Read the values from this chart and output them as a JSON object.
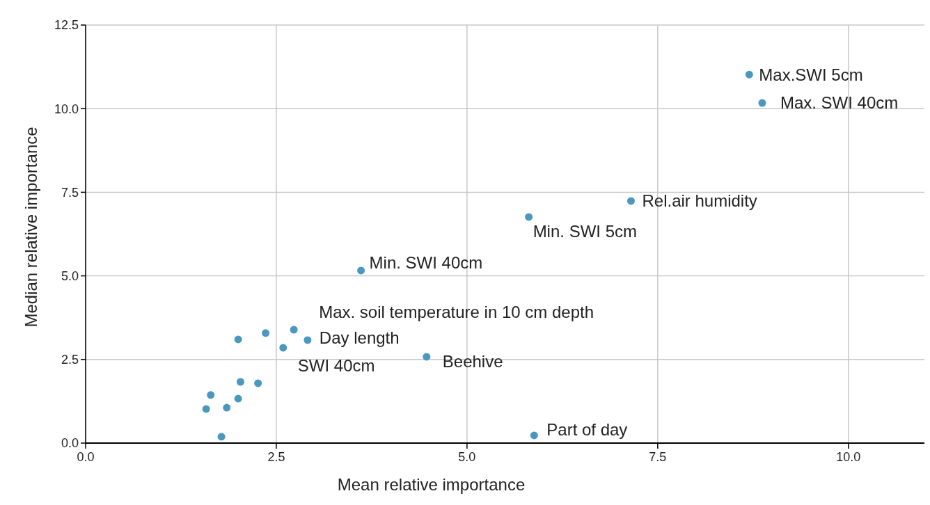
{
  "chart_data": {
    "type": "scatter",
    "xlabel": "Mean relative  importance",
    "ylabel": "Median relative  importance",
    "xlim": [
      0,
      11.07
    ],
    "ylim": [
      0,
      12.5
    ],
    "xticks": [
      {
        "value": 0,
        "label": "0.0"
      },
      {
        "value": 2.5,
        "label": "2.5"
      },
      {
        "value": 5,
        "label": "5.0"
      },
      {
        "value": 7.5,
        "label": "7.5"
      },
      {
        "value": 10,
        "label": "10.0"
      }
    ],
    "yticks": [
      {
        "value": 0,
        "label": "0.0"
      },
      {
        "value": 2.5,
        "label": "2.5"
      },
      {
        "value": 5,
        "label": "5.0"
      },
      {
        "value": 7.5,
        "label": "7.5"
      },
      {
        "value": 10,
        "label": "10.0"
      },
      {
        "value": 12.5,
        "label": "12.5"
      }
    ],
    "grid": true,
    "marker": "circle",
    "series": [
      {
        "color": "#4a98bf",
        "x": [
          8.7,
          8.87,
          7.15,
          5.81,
          3.61,
          2.73,
          2.91,
          2.59,
          4.47,
          5.88,
          2.0,
          2.36,
          2.03,
          2.26,
          1.64,
          2.0,
          1.58,
          1.85,
          1.78
        ],
        "values": [
          11.02,
          10.17,
          7.24,
          6.76,
          5.16,
          3.39,
          3.08,
          2.85,
          2.58,
          0.23,
          3.1,
          3.29,
          1.83,
          1.79,
          1.44,
          1.33,
          1.02,
          1.06,
          0.19
        ]
      }
    ],
    "annotations": [
      {
        "text": "Max.SWI 5cm",
        "x": 8.7,
        "y": 11.02
      },
      {
        "text": "Max. SWI 40cm",
        "x": 8.87,
        "y": 10.17
      },
      {
        "text": "Rel.air humidity",
        "x": 7.15,
        "y": 7.24
      },
      {
        "text": "Min. SWI 5cm",
        "x": 5.81,
        "y": 6.76
      },
      {
        "text": "Min. SWI 40cm",
        "x": 3.61,
        "y": 5.16
      },
      {
        "text": "Max. soil temperature in 10 cm depth",
        "x": 2.73,
        "y": 3.39
      },
      {
        "text": "Day length",
        "x": 2.91,
        "y": 3.08
      },
      {
        "text": "SWI 40cm",
        "x": 2.59,
        "y": 2.85
      },
      {
        "text": "Beehive",
        "x": 4.47,
        "y": 2.58
      },
      {
        "text": "Part of day",
        "x": 5.88,
        "y": 0.23
      }
    ]
  }
}
